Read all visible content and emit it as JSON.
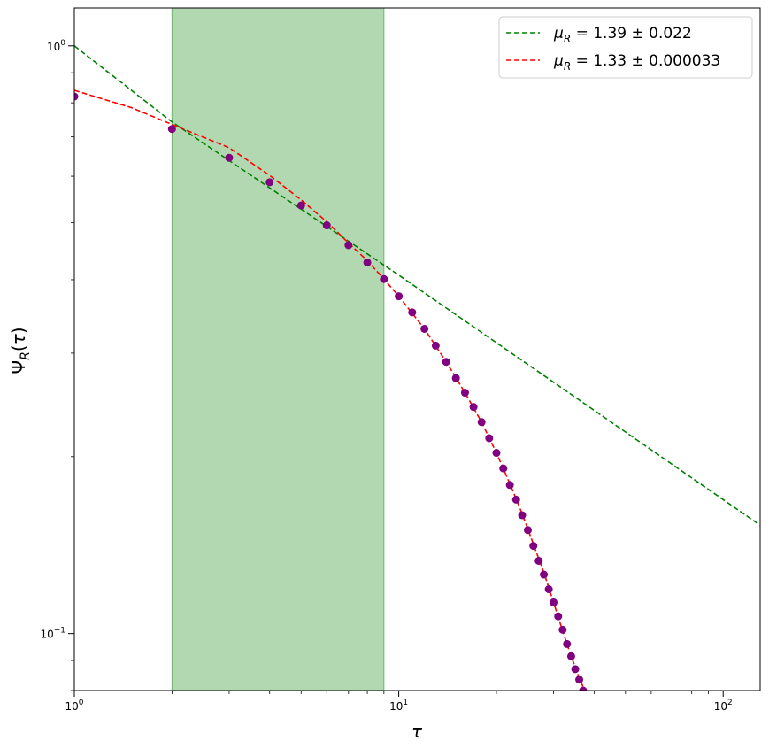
{
  "chart_data": {
    "type": "scatter",
    "xscale": "log",
    "yscale": "log",
    "xlim": [
      1,
      130
    ],
    "ylim": [
      0.08,
      1.16
    ],
    "xlabel": "τ",
    "ylabel": "Ψ_R(τ)",
    "x_ticks": [
      {
        "value": 1,
        "base": "10",
        "exp": "0"
      },
      {
        "value": 10,
        "base": "10",
        "exp": "1"
      },
      {
        "value": 100,
        "base": "10",
        "exp": "2"
      }
    ],
    "y_ticks": [
      {
        "value": 0.1,
        "base": "10",
        "exp": "−1"
      },
      {
        "value": 1,
        "base": "10",
        "exp": "0"
      }
    ],
    "shaded_region": {
      "x0": 2,
      "x1": 9,
      "color": "#b2d8b2"
    },
    "points": {
      "color": "#800080",
      "x": [
        1,
        2,
        3,
        4,
        5,
        6,
        7,
        8,
        9,
        10,
        11,
        12,
        13,
        14,
        15,
        16,
        17,
        18,
        19,
        20,
        21,
        22,
        23,
        24,
        25,
        26,
        27,
        28,
        29,
        30,
        31,
        32,
        33,
        34,
        35,
        36,
        37,
        38
      ],
      "y": [
        0.82,
        0.722,
        0.645,
        0.586,
        0.535,
        0.495,
        0.458,
        0.428,
        0.401,
        0.375,
        0.352,
        0.33,
        0.309,
        0.29,
        0.272,
        0.257,
        0.243,
        0.229,
        0.215,
        0.203,
        0.191,
        0.179,
        0.169,
        0.159,
        0.15,
        0.141,
        0.133,
        0.126,
        0.119,
        0.113,
        0.107,
        0.1015,
        0.096,
        0.0915,
        0.087,
        0.0835,
        0.08,
        0.0775
      ]
    },
    "fits": [
      {
        "name": "μ_R = 1.39 ± 0.022",
        "label_main": "μ",
        "label_sub": "R",
        "label_rest": " = 1.39 ± 0.022",
        "color": "#008000",
        "style": "dashed",
        "x": [
          1,
          2,
          10,
          130
        ],
        "y": [
          1.0,
          0.7423,
          0.4073,
          0.1529
        ]
      },
      {
        "name": "μ_R = 1.33 ± 0.000033",
        "label_main": "μ",
        "label_sub": "R",
        "label_rest": " = 1.33 ± 0.000033",
        "color": "#ff0000",
        "style": "dashed",
        "x": [
          1,
          1.5,
          2,
          3,
          4,
          5,
          6,
          7,
          8,
          9,
          10,
          12,
          14,
          16,
          18,
          20,
          22,
          24,
          26,
          28,
          30,
          32,
          34,
          36,
          38
        ],
        "y": [
          0.84,
          0.785,
          0.735,
          0.671,
          0.602,
          0.547,
          0.502,
          0.462,
          0.431,
          0.401,
          0.375,
          0.33,
          0.29,
          0.257,
          0.229,
          0.203,
          0.18,
          0.16,
          0.142,
          0.127,
          0.113,
          0.101,
          0.0915,
          0.084,
          0.0785
        ]
      }
    ],
    "legend_position": "top-right",
    "grid": false
  }
}
